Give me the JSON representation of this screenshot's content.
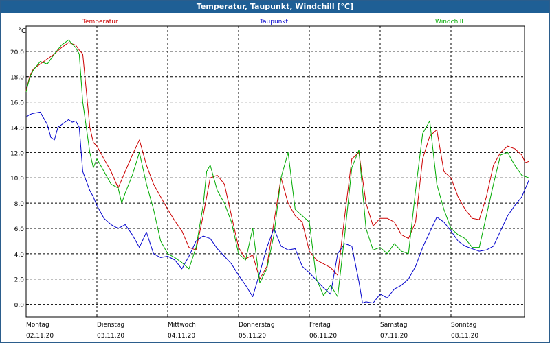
{
  "title": "Temperatur, Taupunkt, Windchill [°C]",
  "chart_data": {
    "type": "line",
    "ylabel": "°C",
    "ylim": [
      -1,
      22
    ],
    "yticks": [
      "0,0",
      "2,0",
      "4,0",
      "6,0",
      "8,0",
      "10,0",
      "12,0",
      "14,0",
      "16,0",
      "18,0",
      "20,0"
    ],
    "xlim": [
      0,
      7.1
    ],
    "days": [
      {
        "day": "Montag",
        "date": "02.11.20"
      },
      {
        "day": "Dienstag",
        "date": "03.11.20"
      },
      {
        "day": "Mittwoch",
        "date": "04.11.20"
      },
      {
        "day": "Donnerstag",
        "date": "05.11.20"
      },
      {
        "day": "Freitag",
        "date": "06.11.20"
      },
      {
        "day": "Samstag",
        "date": "07.11.20"
      },
      {
        "day": "Sonntag",
        "date": "08.11.20"
      }
    ],
    "grid": true,
    "series": [
      {
        "name": "Temperatur",
        "color": "#cc0000",
        "x": [
          0,
          0.05,
          0.1,
          0.2,
          0.3,
          0.4,
          0.5,
          0.6,
          0.7,
          0.75,
          0.8,
          0.9,
          0.95,
          1.0,
          1.05,
          1.1,
          1.2,
          1.3,
          1.4,
          1.5,
          1.6,
          1.7,
          1.8,
          1.85,
          1.9,
          2.0,
          2.1,
          2.2,
          2.3,
          2.4,
          2.5,
          2.6,
          2.7,
          2.8,
          2.9,
          3.0,
          3.1,
          3.2,
          3.3,
          3.4,
          3.5,
          3.6,
          3.7,
          3.8,
          3.9,
          4.0,
          4.1,
          4.2,
          4.3,
          4.4,
          4.5,
          4.6,
          4.7,
          4.8,
          4.9,
          5.0,
          5.1,
          5.2,
          5.3,
          5.4,
          5.5,
          5.6,
          5.7,
          5.8,
          5.9,
          6.0,
          6.1,
          6.2,
          6.3,
          6.4,
          6.5,
          6.6,
          6.7,
          6.8,
          6.9,
          7.0,
          7.05,
          7.1
        ],
        "y": [
          16.9,
          18.0,
          18.6,
          19.0,
          19.4,
          19.8,
          20.3,
          20.7,
          20.5,
          20.1,
          19.8,
          14.0,
          12.8,
          12.5,
          12.0,
          11.5,
          10.5,
          9.2,
          10.5,
          11.8,
          13.0,
          11.0,
          9.5,
          9.0,
          8.5,
          7.5,
          6.6,
          5.8,
          4.5,
          4.3,
          7.0,
          10.0,
          10.2,
          9.5,
          7.0,
          4.5,
          3.6,
          3.9,
          2.0,
          3.0,
          6.5,
          10.0,
          8.0,
          7.0,
          6.5,
          4.2,
          3.5,
          3.2,
          2.9,
          2.3,
          7.0,
          11.5,
          12.0,
          8.0,
          6.2,
          6.8,
          6.8,
          6.5,
          5.5,
          5.2,
          6.5,
          11.5,
          13.3,
          13.8,
          10.5,
          10.0,
          8.5,
          7.5,
          6.8,
          6.7,
          8.5,
          11.0,
          12.0,
          12.5,
          12.3,
          11.8,
          11.2,
          11.3
        ]
      },
      {
        "name": "Taupunkt",
        "color": "#0000cc",
        "x": [
          0,
          0.05,
          0.1,
          0.2,
          0.3,
          0.35,
          0.4,
          0.45,
          0.5,
          0.6,
          0.65,
          0.7,
          0.75,
          0.8,
          0.9,
          0.95,
          1.0,
          1.1,
          1.2,
          1.3,
          1.4,
          1.5,
          1.6,
          1.7,
          1.8,
          1.9,
          2.0,
          2.1,
          2.2,
          2.3,
          2.4,
          2.5,
          2.6,
          2.7,
          2.8,
          2.9,
          3.0,
          3.1,
          3.2,
          3.3,
          3.4,
          3.5,
          3.6,
          3.7,
          3.8,
          3.9,
          4.0,
          4.1,
          4.2,
          4.3,
          4.4,
          4.5,
          4.6,
          4.7,
          4.75,
          4.8,
          4.9,
          5.0,
          5.1,
          5.2,
          5.3,
          5.4,
          5.5,
          5.6,
          5.7,
          5.8,
          5.9,
          6.0,
          6.1,
          6.2,
          6.3,
          6.4,
          6.5,
          6.6,
          6.7,
          6.8,
          6.9,
          7.0,
          7.1
        ],
        "y": [
          14.8,
          15.0,
          15.1,
          15.2,
          14.2,
          13.2,
          13.0,
          14.0,
          14.2,
          14.6,
          14.4,
          14.5,
          14.0,
          10.5,
          9.0,
          8.5,
          7.8,
          6.8,
          6.3,
          6.0,
          6.3,
          5.5,
          4.5,
          5.7,
          4.0,
          3.7,
          3.8,
          3.5,
          2.8,
          3.8,
          5.0,
          5.4,
          5.2,
          4.4,
          3.8,
          3.2,
          2.3,
          1.5,
          0.6,
          2.5,
          4.5,
          6.0,
          4.6,
          4.3,
          4.4,
          3.0,
          2.5,
          1.9,
          1.3,
          0.8,
          4.0,
          4.8,
          4.6,
          1.8,
          0.1,
          0.2,
          0.1,
          0.8,
          0.5,
          1.2,
          1.5,
          2.0,
          3.0,
          4.5,
          5.7,
          6.9,
          6.5,
          5.8,
          5.0,
          4.6,
          4.4,
          4.2,
          4.3,
          4.6,
          5.8,
          7.0,
          7.8,
          8.5,
          9.8
        ]
      },
      {
        "name": "Windchill",
        "color": "#00aa00",
        "x": [
          0,
          0.05,
          0.1,
          0.2,
          0.3,
          0.4,
          0.5,
          0.6,
          0.7,
          0.75,
          0.8,
          0.9,
          0.95,
          1.0,
          1.05,
          1.1,
          1.2,
          1.3,
          1.35,
          1.4,
          1.5,
          1.6,
          1.7,
          1.8,
          1.9,
          2.0,
          2.1,
          2.2,
          2.3,
          2.4,
          2.5,
          2.55,
          2.6,
          2.7,
          2.8,
          2.9,
          3.0,
          3.1,
          3.2,
          3.3,
          3.4,
          3.5,
          3.6,
          3.7,
          3.8,
          3.9,
          4.0,
          4.1,
          4.2,
          4.3,
          4.4,
          4.5,
          4.6,
          4.7,
          4.8,
          4.9,
          5.0,
          5.1,
          5.2,
          5.3,
          5.4,
          5.5,
          5.6,
          5.7,
          5.8,
          5.9,
          6.0,
          6.1,
          6.2,
          6.3,
          6.4,
          6.5,
          6.6,
          6.7,
          6.8,
          6.9,
          7.0,
          7.1
        ],
        "y": [
          16.8,
          17.9,
          18.5,
          19.2,
          19.0,
          19.8,
          20.5,
          20.9,
          20.3,
          19.8,
          16.0,
          12.0,
          10.8,
          11.5,
          11.0,
          10.5,
          9.5,
          9.2,
          8.0,
          8.8,
          10.2,
          12.0,
          9.5,
          7.5,
          5.0,
          4.0,
          3.7,
          3.3,
          2.8,
          4.5,
          7.8,
          10.5,
          11.0,
          9.0,
          8.0,
          6.5,
          4.0,
          3.5,
          6.0,
          1.7,
          2.8,
          5.5,
          10.0,
          12.0,
          7.5,
          7.0,
          6.5,
          2.0,
          0.7,
          1.5,
          0.6,
          5.5,
          10.8,
          12.2,
          6.0,
          4.3,
          4.5,
          4.0,
          4.8,
          4.2,
          4.0,
          9.0,
          13.5,
          14.5,
          9.5,
          7.5,
          6.0,
          5.5,
          5.2,
          4.5,
          4.5,
          7.0,
          9.5,
          11.8,
          12.0,
          11.0,
          10.2,
          10.0
        ]
      }
    ]
  }
}
